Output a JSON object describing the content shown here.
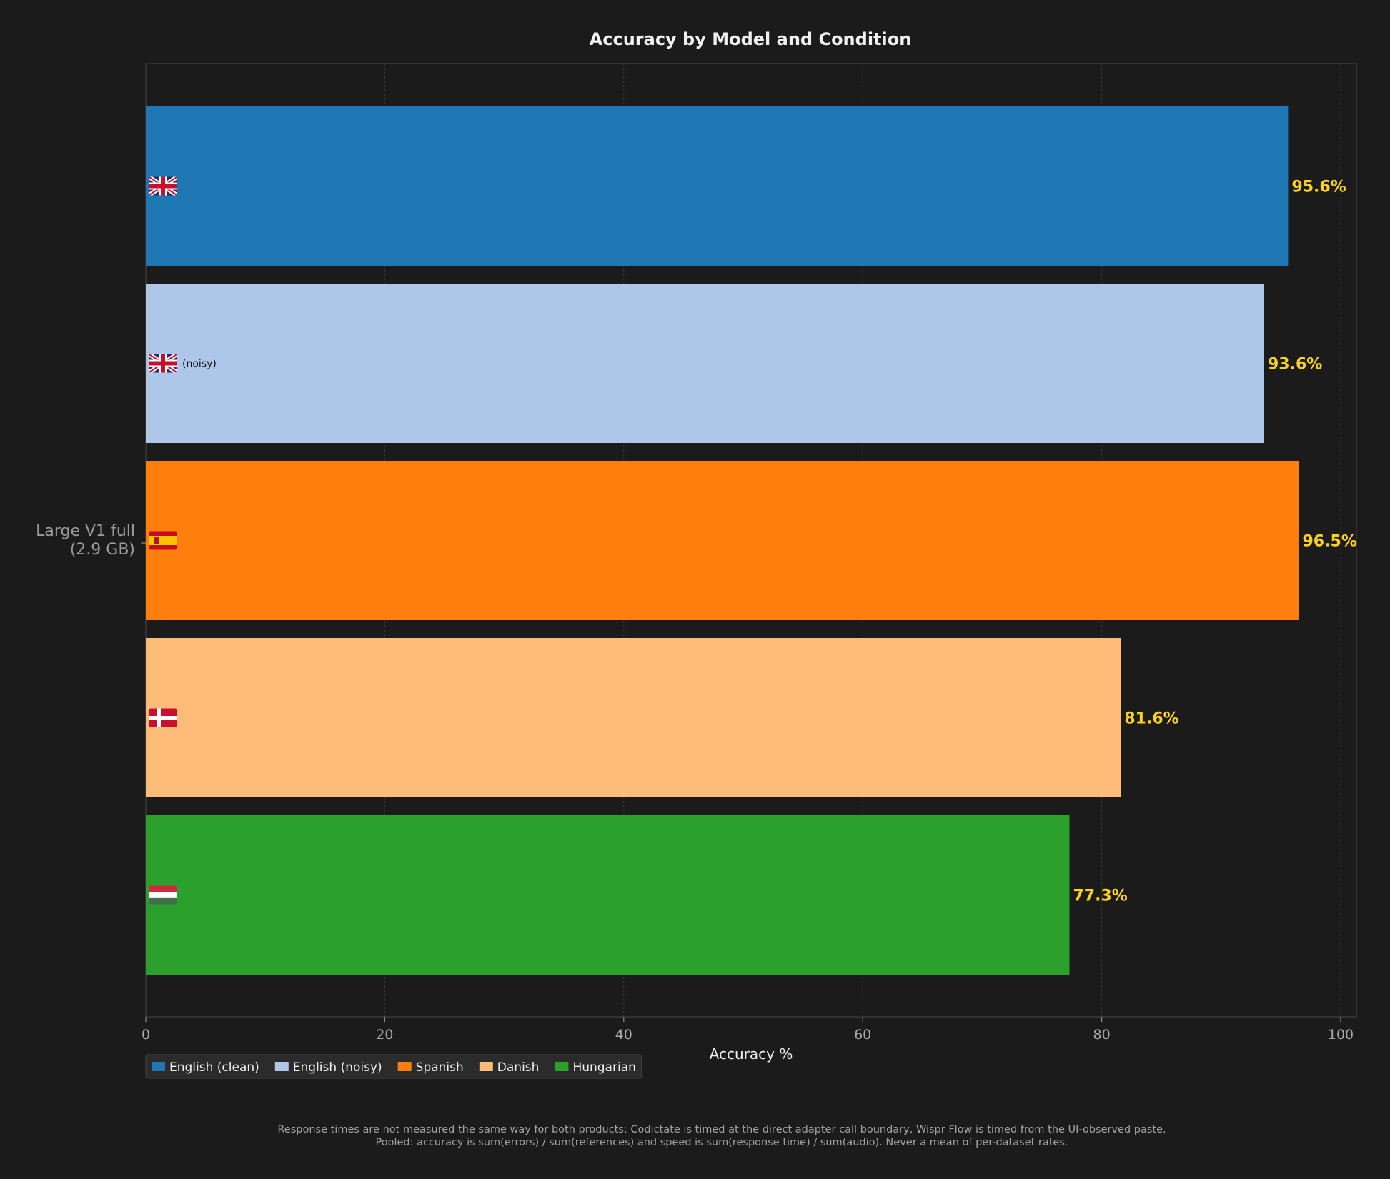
{
  "chart_data": {
    "type": "bar",
    "orientation": "horizontal",
    "title": "Accuracy by Model and Condition",
    "xlabel": "Accuracy %",
    "ylabel": "",
    "xlim": [
      0,
      100
    ],
    "x_ticks": [
      0,
      20,
      40,
      60,
      80,
      100
    ],
    "grid": "vertical dashed",
    "categories": [
      "Large V1 full\n(2.9 GB)"
    ],
    "series": [
      {
        "name": "English (clean)",
        "values": [
          95.6
        ],
        "label": "95.6%",
        "color": "#1f77b4",
        "flag": "flag-gb-icon",
        "suffix": ""
      },
      {
        "name": "English (noisy)",
        "values": [
          93.6
        ],
        "label": "93.6%",
        "color": "#aec7e8",
        "flag": "flag-gb-icon",
        "suffix": "(noisy)"
      },
      {
        "name": "Spanish",
        "values": [
          96.5
        ],
        "label": "96.5%",
        "color": "#ff7f0e",
        "flag": "flag-es-icon",
        "suffix": ""
      },
      {
        "name": "Danish",
        "values": [
          81.6
        ],
        "label": "81.6%",
        "color": "#ffbb78",
        "flag": "flag-dk-icon",
        "suffix": ""
      },
      {
        "name": "Hungarian",
        "values": [
          77.3
        ],
        "label": "77.3%",
        "color": "#2ca02c",
        "flag": "flag-hu-icon",
        "suffix": ""
      }
    ],
    "legend_position": "bottom-left, below axis",
    "value_label_color": "#ffd21f",
    "background_color": "#1b1b1b"
  },
  "footnote": {
    "line1": "Response times are not measured the same way for both products: Codictate is timed at the direct adapter call boundary, Wispr Flow is timed from the UI-observed paste.",
    "line2": "Pooled: accuracy is sum(errors) / sum(references) and speed is sum(response time) / sum(audio). Never a mean of per-dataset rates."
  }
}
